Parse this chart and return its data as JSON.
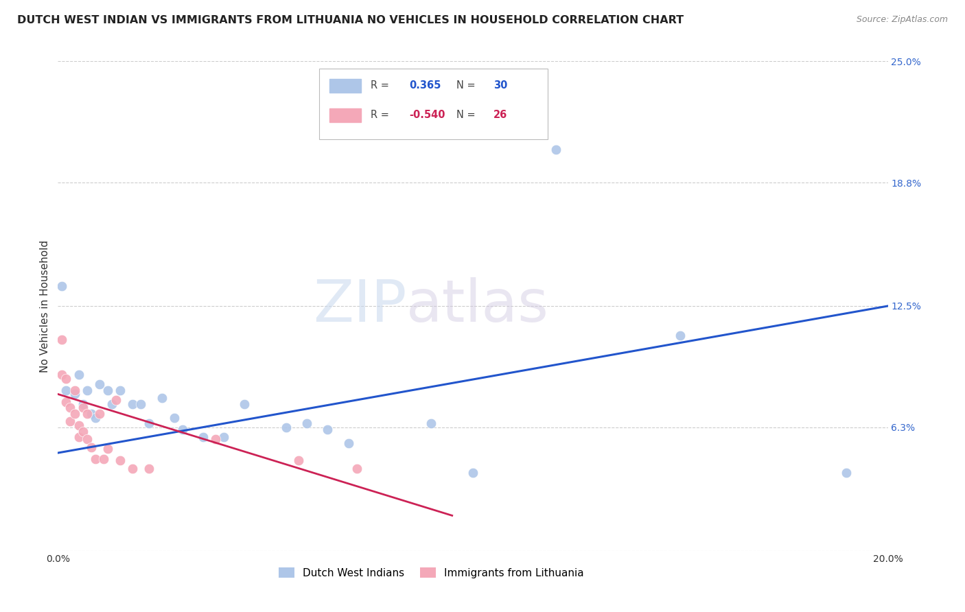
{
  "title": "DUTCH WEST INDIAN VS IMMIGRANTS FROM LITHUANIA NO VEHICLES IN HOUSEHOLD CORRELATION CHART",
  "source": "Source: ZipAtlas.com",
  "ylabel": "No Vehicles in Household",
  "xlabel": "",
  "xlim": [
    0.0,
    0.2
  ],
  "ylim": [
    0.0,
    0.25
  ],
  "x_ticks": [
    0.0,
    0.05,
    0.1,
    0.15,
    0.2
  ],
  "x_tick_labels": [
    "0.0%",
    "",
    "",
    "",
    "20.0%"
  ],
  "y_tick_labels_right": [
    "25.0%",
    "18.8%",
    "12.5%",
    "6.3%",
    ""
  ],
  "y_tick_vals_right": [
    0.25,
    0.188,
    0.125,
    0.063,
    0.0
  ],
  "blue_R": "0.365",
  "blue_N": "30",
  "pink_R": "-0.540",
  "pink_N": "26",
  "legend_label_blue": "Dutch West Indians",
  "legend_label_pink": "Immigrants from Lithuania",
  "blue_scatter_x": [
    0.001,
    0.002,
    0.004,
    0.005,
    0.006,
    0.007,
    0.008,
    0.009,
    0.01,
    0.012,
    0.013,
    0.015,
    0.018,
    0.02,
    0.022,
    0.025,
    0.028,
    0.03,
    0.035,
    0.04,
    0.045,
    0.055,
    0.06,
    0.065,
    0.07,
    0.09,
    0.1,
    0.12,
    0.15,
    0.19
  ],
  "blue_scatter_y": [
    0.135,
    0.082,
    0.08,
    0.09,
    0.075,
    0.082,
    0.07,
    0.068,
    0.085,
    0.082,
    0.075,
    0.082,
    0.075,
    0.075,
    0.065,
    0.078,
    0.068,
    0.062,
    0.058,
    0.058,
    0.075,
    0.063,
    0.065,
    0.062,
    0.055,
    0.065,
    0.04,
    0.205,
    0.11,
    0.04
  ],
  "pink_scatter_x": [
    0.001,
    0.001,
    0.002,
    0.002,
    0.003,
    0.003,
    0.004,
    0.004,
    0.005,
    0.005,
    0.006,
    0.006,
    0.007,
    0.007,
    0.008,
    0.009,
    0.01,
    0.011,
    0.012,
    0.014,
    0.015,
    0.018,
    0.022,
    0.038,
    0.058,
    0.072
  ],
  "pink_scatter_y": [
    0.108,
    0.09,
    0.088,
    0.076,
    0.073,
    0.066,
    0.082,
    0.07,
    0.064,
    0.058,
    0.073,
    0.061,
    0.07,
    0.057,
    0.053,
    0.047,
    0.07,
    0.047,
    0.052,
    0.077,
    0.046,
    0.042,
    0.042,
    0.057,
    0.046,
    0.042
  ],
  "blue_line_x": [
    0.0,
    0.2
  ],
  "blue_line_y": [
    0.05,
    0.125
  ],
  "pink_line_x": [
    0.0,
    0.095
  ],
  "pink_line_y": [
    0.08,
    0.018
  ],
  "watermark_zip": "ZIP",
  "watermark_atlas": "atlas",
  "bg_color": "#ffffff",
  "blue_dot_color": "#aec6e8",
  "pink_dot_color": "#f4a8b8",
  "blue_line_color": "#2255cc",
  "pink_line_color": "#cc2255",
  "grid_color": "#cccccc",
  "title_color": "#222222",
  "right_label_color": "#3366cc",
  "source_color": "#888888"
}
